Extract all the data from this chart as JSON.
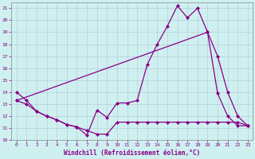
{
  "xlabel": "Windchill (Refroidissement éolien,°C)",
  "background_color": "#cff0f0",
  "line_color": "#880088",
  "ylim": [
    10,
    21.5
  ],
  "xlim": [
    -0.5,
    23.5
  ],
  "yticks": [
    10,
    11,
    12,
    13,
    14,
    15,
    16,
    17,
    18,
    19,
    20,
    21
  ],
  "xticks": [
    0,
    1,
    2,
    3,
    4,
    5,
    6,
    7,
    8,
    9,
    10,
    11,
    12,
    13,
    14,
    15,
    16,
    17,
    18,
    19,
    20,
    21,
    22,
    23
  ],
  "series": [
    {
      "x": [
        0,
        1,
        2,
        3,
        4,
        5,
        6,
        7,
        8,
        9,
        10,
        11,
        12,
        13,
        14,
        15,
        16,
        17,
        18,
        19,
        20,
        21,
        22,
        23
      ],
      "y": [
        14,
        13.3,
        12.4,
        12.0,
        11.7,
        11.3,
        11.1,
        10.4,
        12.5,
        11.9,
        13.1,
        13.1,
        13.3,
        16.3,
        18.0,
        19.5,
        21.2,
        20.2,
        21.0,
        19.0,
        13.9,
        12.0,
        11.2,
        11.2
      ]
    },
    {
      "x": [
        0,
        19,
        20,
        21,
        22,
        23
      ],
      "y": [
        13.3,
        19.0,
        17.0,
        14.0,
        12.0,
        11.2
      ]
    },
    {
      "x": [
        0,
        1,
        2,
        3,
        4,
        5,
        6,
        7,
        8,
        9,
        10,
        11,
        12,
        13,
        14,
        15,
        16,
        17,
        18,
        19,
        20,
        21,
        22,
        23
      ],
      "y": [
        13.3,
        13.0,
        12.4,
        12.0,
        11.7,
        11.3,
        11.1,
        10.8,
        10.5,
        10.5,
        11.5,
        11.5,
        11.5,
        11.5,
        11.5,
        11.5,
        11.5,
        11.5,
        11.5,
        11.5,
        11.5,
        11.5,
        11.5,
        11.2
      ]
    }
  ]
}
